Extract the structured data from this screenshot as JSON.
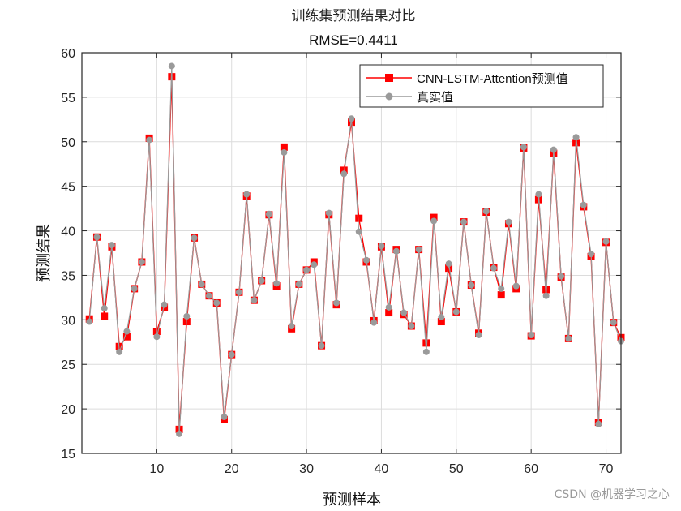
{
  "chart_data": {
    "type": "line",
    "title": "训练集预测结果对比",
    "subtitle": "RMSE=0.4411",
    "xlabel": "预测样本",
    "ylabel": "预测结果",
    "xlim": [
      0,
      72
    ],
    "ylim": [
      15,
      60
    ],
    "xticks": [
      10,
      20,
      30,
      40,
      50,
      60,
      70
    ],
    "yticks": [
      15,
      20,
      25,
      30,
      35,
      40,
      45,
      50,
      55,
      60
    ],
    "grid": true,
    "legend_position": "top-right",
    "x": [
      1,
      2,
      3,
      4,
      5,
      6,
      7,
      8,
      9,
      10,
      11,
      12,
      13,
      14,
      15,
      16,
      17,
      18,
      19,
      20,
      21,
      22,
      23,
      24,
      25,
      26,
      27,
      28,
      29,
      30,
      31,
      32,
      33,
      34,
      35,
      36,
      37,
      38,
      39,
      40,
      41,
      42,
      43,
      44,
      45,
      46,
      47,
      48,
      49,
      50,
      51,
      52,
      53,
      54,
      55,
      56,
      57,
      58,
      59,
      60,
      61,
      62,
      63,
      64,
      65,
      66,
      67,
      68,
      69,
      70,
      71,
      72
    ],
    "series": [
      {
        "name": "CNN-LSTM-Attention预测值",
        "color": "#ff0000",
        "marker": "square",
        "values": [
          30.1,
          39.3,
          30.4,
          38.2,
          27.0,
          28.1,
          33.5,
          36.5,
          50.4,
          28.7,
          31.4,
          57.3,
          17.7,
          29.8,
          39.2,
          34.0,
          32.7,
          31.9,
          18.8,
          26.1,
          33.1,
          43.9,
          32.2,
          34.4,
          41.8,
          33.8,
          49.4,
          29.0,
          34.0,
          35.6,
          36.5,
          27.1,
          41.8,
          31.7,
          46.8,
          52.2,
          41.4,
          36.5,
          29.9,
          38.2,
          30.8,
          37.9,
          30.6,
          29.3,
          37.9,
          27.4,
          41.5,
          29.8,
          35.8,
          30.9,
          41.0,
          33.9,
          28.5,
          42.1,
          35.9,
          32.8,
          40.8,
          33.5,
          49.3,
          28.2,
          43.5,
          33.4,
          48.7,
          34.8,
          27.9,
          49.9,
          42.7,
          37.1,
          18.5,
          38.7,
          29.7,
          28.0
        ]
      },
      {
        "name": "真实值",
        "color": "#9a9a9a",
        "marker": "circle",
        "values": [
          29.8,
          39.3,
          31.3,
          38.4,
          26.4,
          28.7,
          33.5,
          36.5,
          50.2,
          28.1,
          31.7,
          58.5,
          17.2,
          30.4,
          39.2,
          34.0,
          32.7,
          31.9,
          19.1,
          26.1,
          33.1,
          44.1,
          32.2,
          34.4,
          41.9,
          34.1,
          48.8,
          29.3,
          34.0,
          35.6,
          36.2,
          27.1,
          42.0,
          31.9,
          46.4,
          52.6,
          39.9,
          36.7,
          29.7,
          38.3,
          31.4,
          37.7,
          30.8,
          29.3,
          37.9,
          26.4,
          41.1,
          30.3,
          36.3,
          30.9,
          41.0,
          33.9,
          28.3,
          42.2,
          35.8,
          33.5,
          41.0,
          33.8,
          49.4,
          28.3,
          44.1,
          32.7,
          49.1,
          34.9,
          27.9,
          50.5,
          42.9,
          37.4,
          18.3,
          38.8,
          29.7,
          27.6
        ]
      }
    ]
  },
  "watermark": "CSDN @机器学习之心"
}
